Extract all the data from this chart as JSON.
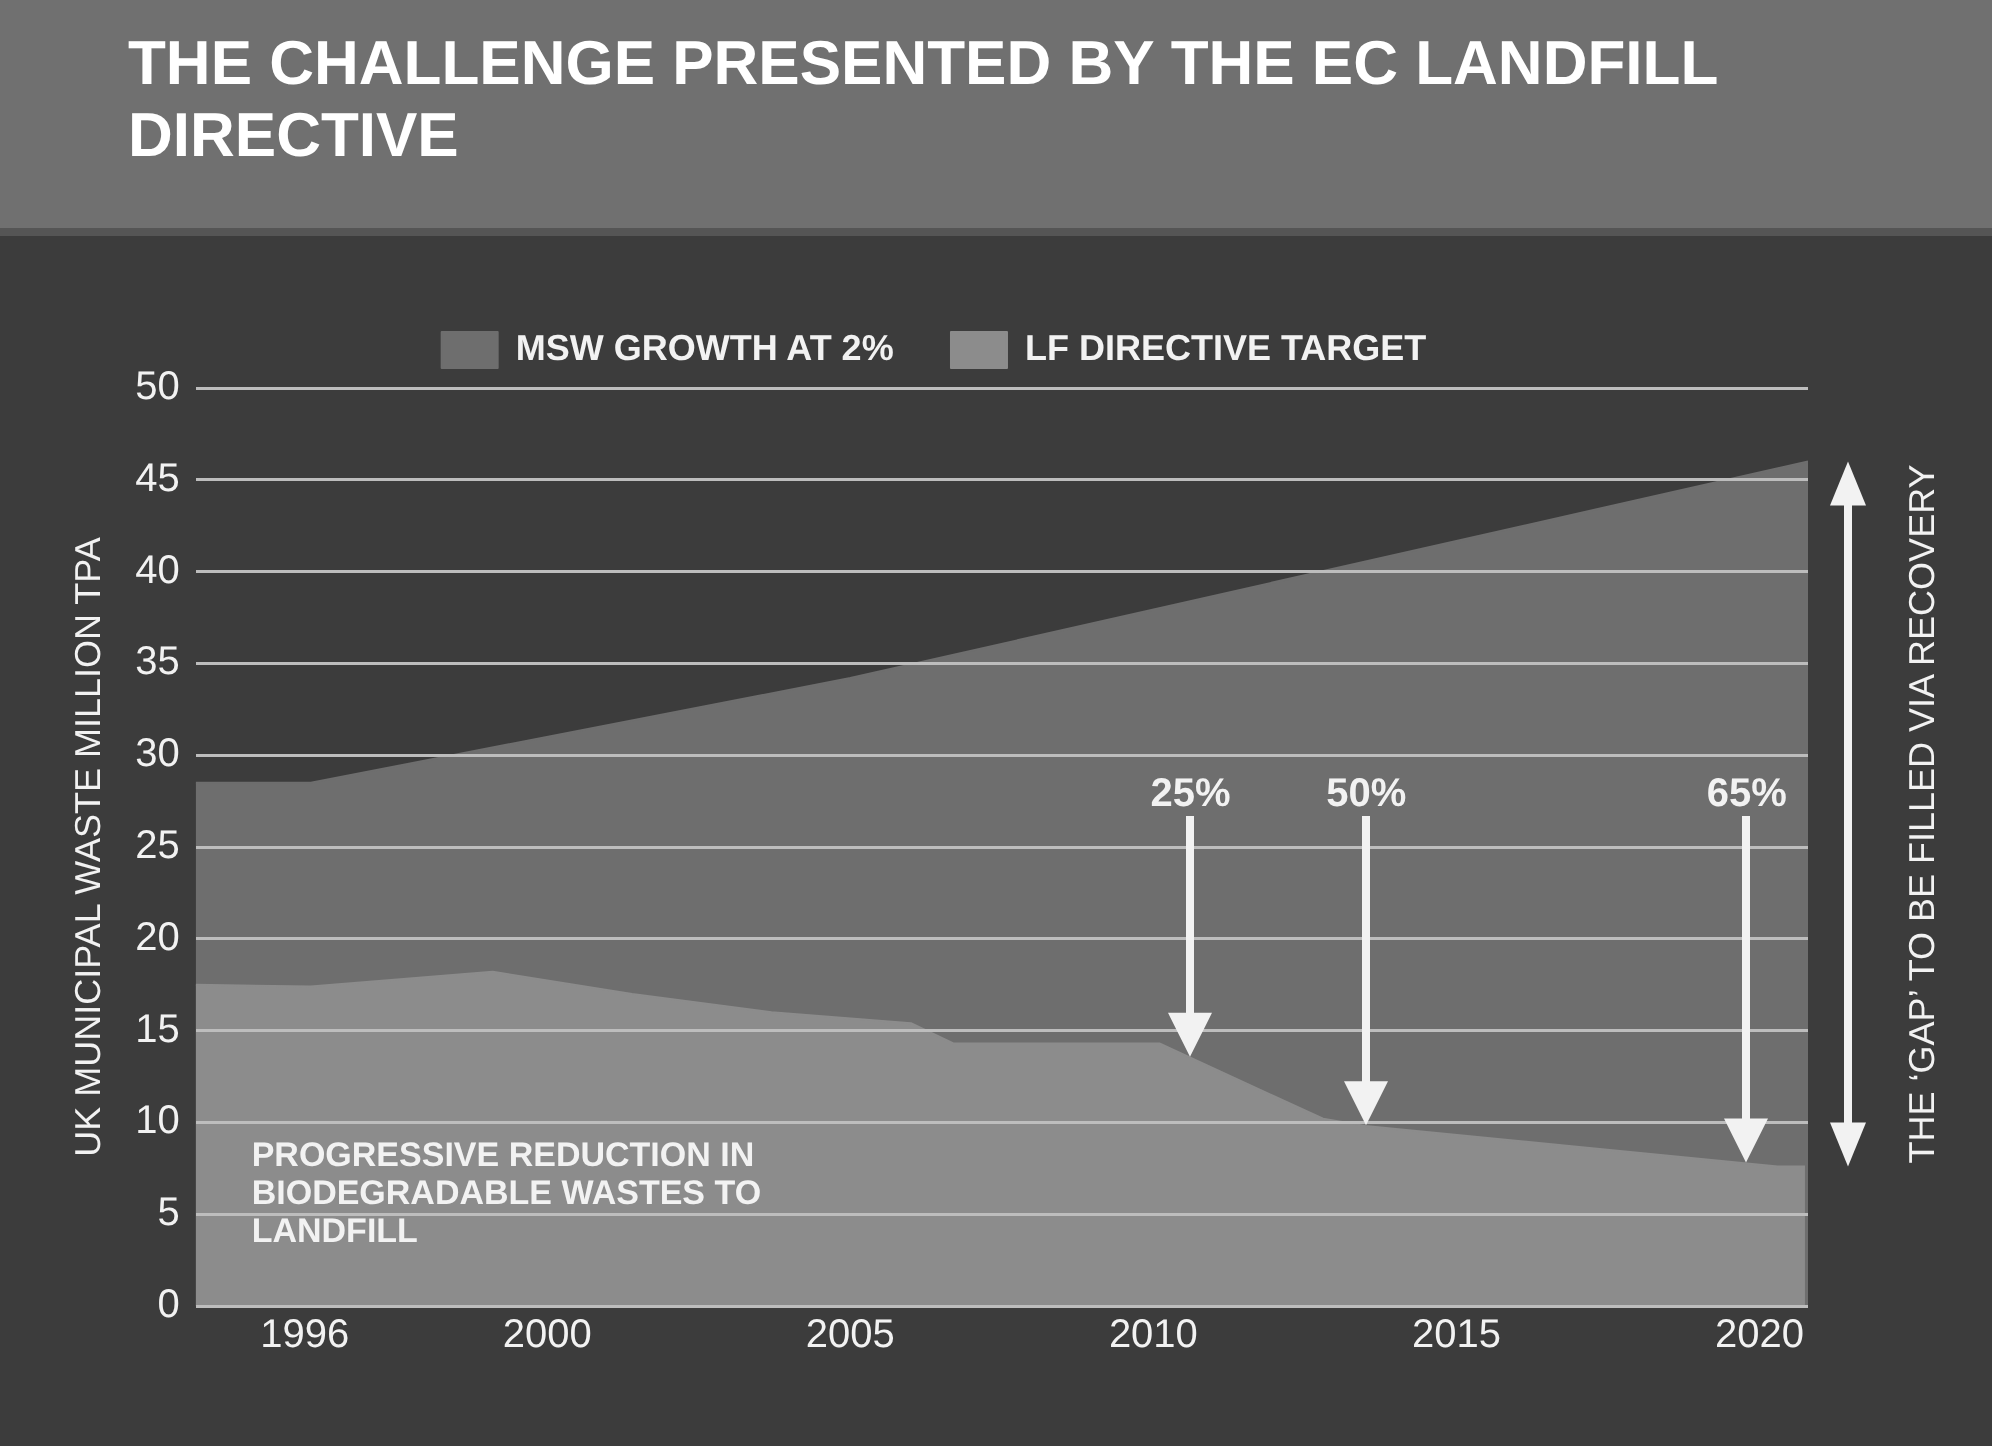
{
  "chart_data": {
    "type": "area",
    "title": "THE CHALLENGE PRESENTED BY THE EC LANDFILL DIRECTIVE",
    "ylabel": "UK MUNICIPAL WASTE MILLION TPA",
    "series": [
      {
        "name": "MSW GROWTH AT 2%",
        "color": "#6e6e6e",
        "x": [
          1994.2,
          1996.1,
          2005,
          2020.8
        ],
        "values": [
          28.5,
          28.5,
          34.2,
          46
        ]
      },
      {
        "name": "LF DIRECTIVE TARGET",
        "color": "#8c8c8c",
        "x": [
          1994.2,
          1996.1,
          1999.1,
          2001.4,
          2003.7,
          2006.0,
          2006.7,
          2010.1,
          2012.8,
          2013.5,
          2016.9,
          2020.3,
          2020.75
        ],
        "values": [
          17.5,
          17.4,
          18.2,
          17,
          16,
          15.4,
          14.3,
          14.3,
          10.2,
          9.8,
          8.7,
          7.6,
          7.6
        ]
      }
    ],
    "xlim": [
      1994.2,
      2020.8
    ],
    "xticks": [
      1996,
      2000,
      2005,
      2010,
      2015,
      2020
    ],
    "ylim": [
      0,
      50
    ],
    "yticks": [
      0,
      5,
      10,
      15,
      20,
      25,
      30,
      35,
      40,
      45,
      50
    ],
    "grid": "y",
    "legend": "top",
    "annotations": [
      "25%",
      "50%",
      "65%",
      "PROGRESSIVE REDUCTION IN BIODEGRADABLE WASTES TO LANDFILL",
      "THE ‘GAP’ TO BE FILLED VIA RECOVERY"
    ]
  }
}
